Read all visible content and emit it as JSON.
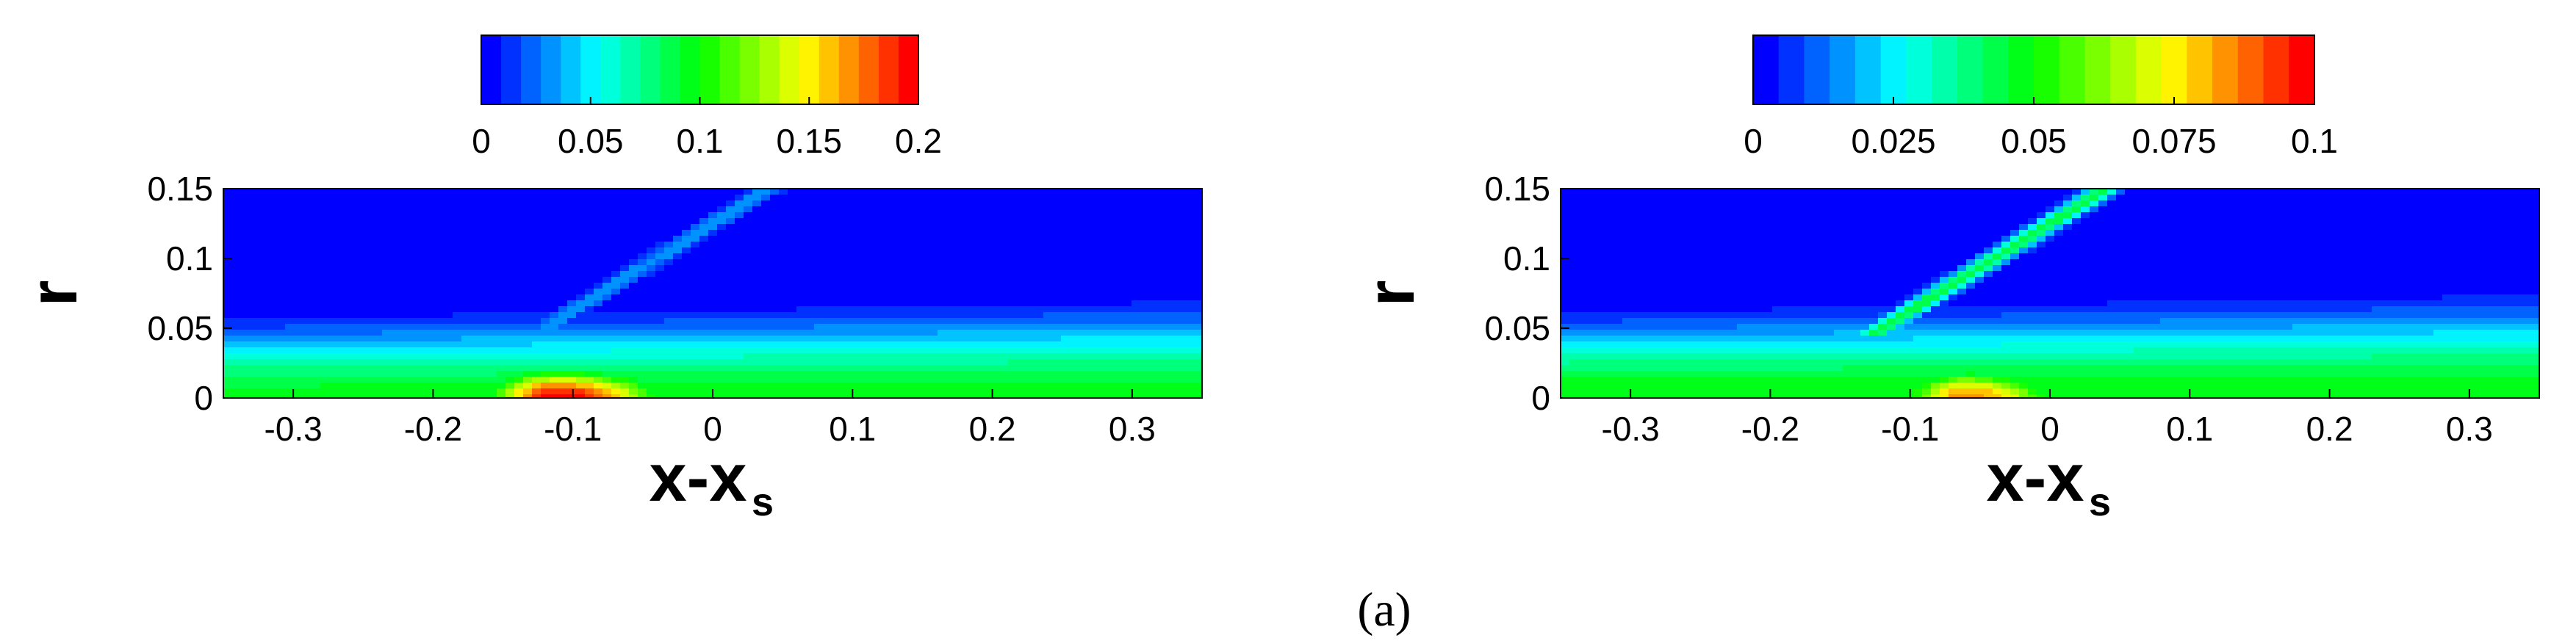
{
  "caption": "(a)",
  "chart_data": [
    {
      "type": "heatmap",
      "xlabel": "x-x",
      "xlabel_subscript": "s",
      "ylabel": "r",
      "xlim": [
        -0.35,
        0.35
      ],
      "ylim": [
        0,
        0.15
      ],
      "x_ticks": [
        -0.3,
        -0.2,
        -0.1,
        0,
        0.1,
        0.2,
        0.3
      ],
      "x_tick_labels": [
        "-0.3",
        "-0.2",
        "-0.1",
        "0",
        "0.1",
        "0.2",
        "0.3"
      ],
      "y_ticks": [
        0,
        0.05,
        0.1,
        0.15
      ],
      "y_tick_labels": [
        "0",
        "0.05",
        "0.1",
        "0.15"
      ],
      "colorbar": {
        "min": 0,
        "max": 0.2,
        "levels": 22,
        "ticks": [
          0,
          0.05,
          0.1,
          0.15,
          0.2
        ],
        "tick_labels": [
          "0",
          "0.05",
          "0.1",
          "0.15",
          "0.2"
        ],
        "placement": "top"
      },
      "colormap": [
        "#0000ff",
        "#0080ff",
        "#00ffff",
        "#00ff80",
        "#00ff00",
        "#80ff00",
        "#ffff00",
        "#ff8000",
        "#ff0000"
      ],
      "field": {
        "free_stream": 0.0,
        "boundary_layer": {
          "edge_start": 0.07,
          "edge_end": 0.085,
          "wall_value": 0.095
        },
        "recirculation": {
          "x_start": -0.2,
          "x_peak": -0.11,
          "x_end": 0.02,
          "peak_value": 0.2
        },
        "shock": {
          "x_foot": -0.12,
          "x_top": 0.04,
          "value": 0.035
        }
      }
    },
    {
      "type": "heatmap",
      "xlabel": "x-x",
      "xlabel_subscript": "s",
      "ylabel": "r",
      "xlim": [
        -0.35,
        0.35
      ],
      "ylim": [
        0,
        0.15
      ],
      "x_ticks": [
        -0.3,
        -0.2,
        -0.1,
        0,
        0.1,
        0.2,
        0.3
      ],
      "x_tick_labels": [
        "-0.3",
        "-0.2",
        "-0.1",
        "0",
        "0.1",
        "0.2",
        "0.3"
      ],
      "y_ticks": [
        0,
        0.05,
        0.1,
        0.15
      ],
      "y_tick_labels": [
        "0",
        "0.05",
        "0.1",
        "0.15"
      ],
      "colorbar": {
        "min": 0,
        "max": 0.1,
        "levels": 22,
        "ticks": [
          0,
          0.025,
          0.05,
          0.075,
          0.1
        ],
        "tick_labels": [
          "0",
          "0.025",
          "0.05",
          "0.075",
          "0.1"
        ],
        "placement": "top"
      },
      "colormap": [
        "#0000ff",
        "#0080ff",
        "#00ffff",
        "#00ff80",
        "#00ff00",
        "#80ff00",
        "#ffff00",
        "#ff8000",
        "#ff0000"
      ],
      "field": {
        "free_stream": 0.0,
        "boundary_layer": {
          "edge_start": 0.075,
          "edge_end": 0.09,
          "wall_value": 0.05
        },
        "recirculation": {
          "x_start": -0.14,
          "x_peak": -0.06,
          "x_end": 0.06,
          "peak_value": 0.085
        },
        "shock": {
          "x_foot": -0.12,
          "x_top": 0.04,
          "value": 0.045
        }
      }
    }
  ]
}
